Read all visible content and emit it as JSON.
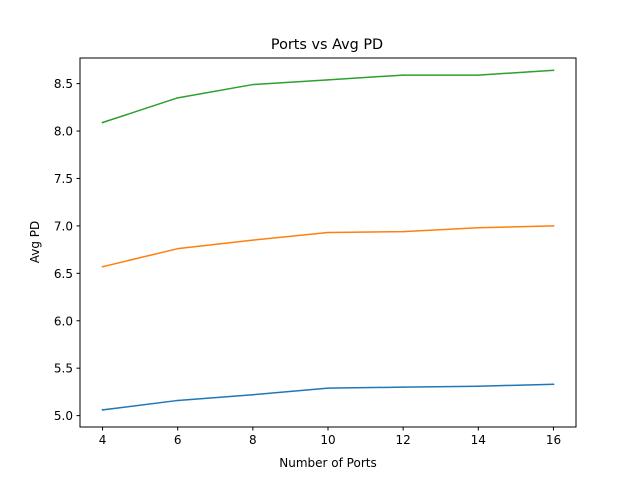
{
  "chart_data": {
    "type": "line",
    "title": "Ports vs Avg PD",
    "xlabel": "Number of Ports",
    "ylabel": "Avg PD",
    "x": [
      4,
      6,
      8,
      10,
      12,
      14,
      16
    ],
    "xticks": [
      "4",
      "6",
      "8",
      "10",
      "12",
      "14",
      "16"
    ],
    "yticks": [
      "5.0",
      "5.5",
      "6.0",
      "6.5",
      "7.0",
      "7.5",
      "8.0",
      "8.5"
    ],
    "xlim": [
      3.4,
      16.6
    ],
    "ylim": [
      4.88,
      8.77
    ],
    "grid": false,
    "series": [
      {
        "color": "#1f77b4",
        "values": [
          5.06,
          5.16,
          5.22,
          5.29,
          5.3,
          5.31,
          5.33
        ]
      },
      {
        "color": "#ff7f0e",
        "values": [
          6.57,
          6.76,
          6.85,
          6.93,
          6.94,
          6.98,
          7.0
        ]
      },
      {
        "color": "#2ca02c",
        "values": [
          8.09,
          8.35,
          8.49,
          8.54,
          8.59,
          8.59,
          8.64
        ]
      }
    ]
  }
}
